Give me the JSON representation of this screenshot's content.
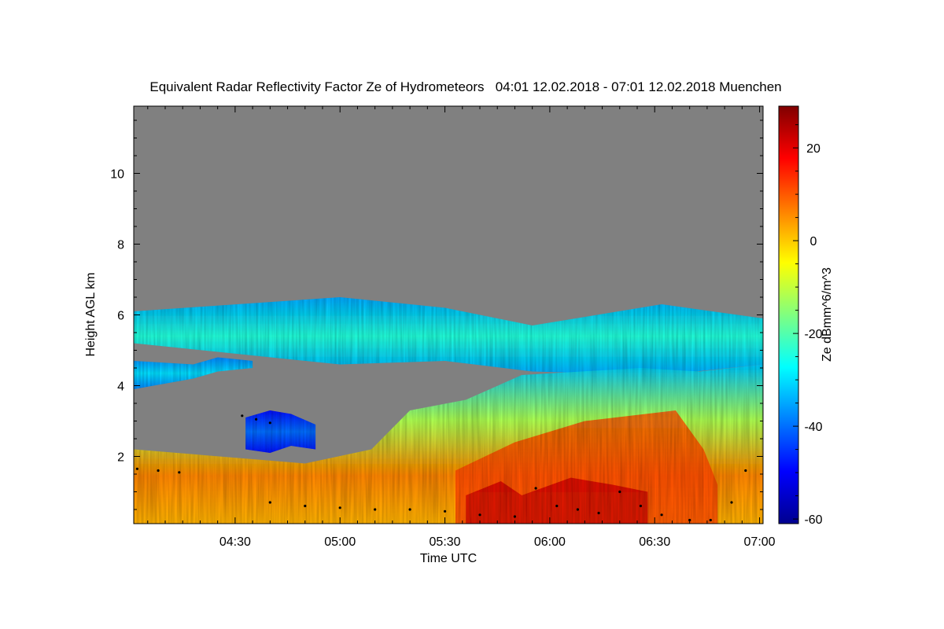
{
  "chart_data": {
    "type": "heatmap",
    "title": "Equivalent Radar Reflectivity Factor Ze of Hydrometeors   04:01 12.02.2018 - 07:01 12.02.2018 Muenchen",
    "xlabel": "Time UTC",
    "ylabel": "Height AGL km",
    "colorbar_label": "Ze dBmm^6/m^3",
    "x_range_minutes": [
      241,
      421
    ],
    "x_ticks": [
      {
        "minute": 270,
        "label": "04:30"
      },
      {
        "minute": 300,
        "label": "05:00"
      },
      {
        "minute": 330,
        "label": "05:30"
      },
      {
        "minute": 360,
        "label": "06:00"
      },
      {
        "minute": 390,
        "label": "06:30"
      },
      {
        "minute": 420,
        "label": "07:00"
      }
    ],
    "y_range_km": [
      0.1,
      11.9
    ],
    "y_ticks": [
      {
        "value": 2,
        "label": "2"
      },
      {
        "value": 4,
        "label": "4"
      },
      {
        "value": 6,
        "label": "6"
      },
      {
        "value": 8,
        "label": "8"
      },
      {
        "value": 10,
        "label": "10"
      }
    ],
    "colorbar_range_dbz": [
      -61,
      29
    ],
    "colorbar_ticks": [
      {
        "value": 20,
        "label": "20"
      },
      {
        "value": 0,
        "label": "0"
      },
      {
        "value": -20,
        "label": "-20"
      },
      {
        "value": -40,
        "label": "-40"
      },
      {
        "value": -60,
        "label": "-60"
      }
    ],
    "colormap": [
      "#00008f",
      "#0000ff",
      "#0080ff",
      "#00ffff",
      "#80ff80",
      "#ffff00",
      "#ff8000",
      "#ff0000",
      "#800000"
    ],
    "no_signal_color": "#808080",
    "layers": [
      {
        "name": "upper cloud band",
        "t": [
          241,
          300,
          330,
          355,
          392,
          421
        ],
        "base": [
          5.2,
          4.6,
          4.7,
          4.4,
          4.3,
          4.6
        ],
        "top": [
          6.1,
          6.5,
          6.2,
          5.7,
          6.3,
          5.9
        ],
        "dbz_core": -24,
        "dbz_edge": -35
      },
      {
        "name": "mid cloud band",
        "t": [
          241,
          258,
          265,
          275
        ],
        "base": [
          3.9,
          4.2,
          4.4,
          4.5
        ],
        "top": [
          4.7,
          4.6,
          4.8,
          4.7
        ],
        "dbz_core": -30,
        "dbz_edge": -38
      },
      {
        "name": "isolated mid echo",
        "t": [
          273,
          280,
          286,
          293
        ],
        "base": [
          2.2,
          2.1,
          2.3,
          2.2
        ],
        "top": [
          3.1,
          3.3,
          3.2,
          2.9
        ],
        "dbz_core": -40,
        "dbz_edge": -48
      },
      {
        "name": "precipitation",
        "t": [
          241,
          290,
          309,
          320,
          336,
          352,
          386,
          403,
          421
        ],
        "base": [
          0.1,
          0.1,
          0.1,
          0.1,
          0.1,
          0.1,
          0.1,
          0.1,
          0.1
        ],
        "top": [
          2.2,
          1.8,
          2.2,
          3.3,
          3.6,
          4.3,
          4.5,
          4.4,
          4.6
        ],
        "dbz_core": 6,
        "dbz_edge": -32
      }
    ],
    "melting_layer_points": [
      {
        "t": 242,
        "h": 1.65
      },
      {
        "t": 248,
        "h": 1.6
      },
      {
        "t": 254,
        "h": 1.55
      },
      {
        "t": 272,
        "h": 3.15
      },
      {
        "t": 276,
        "h": 3.05
      },
      {
        "t": 280,
        "h": 2.95
      },
      {
        "t": 280,
        "h": 0.7
      },
      {
        "t": 290,
        "h": 0.6
      },
      {
        "t": 300,
        "h": 0.55
      },
      {
        "t": 310,
        "h": 0.5
      },
      {
        "t": 320,
        "h": 0.5
      },
      {
        "t": 330,
        "h": 0.45
      },
      {
        "t": 340,
        "h": 0.35
      },
      {
        "t": 350,
        "h": 0.3
      },
      {
        "t": 356,
        "h": 1.1
      },
      {
        "t": 362,
        "h": 0.6
      },
      {
        "t": 368,
        "h": 0.5
      },
      {
        "t": 374,
        "h": 0.4
      },
      {
        "t": 380,
        "h": 1.0
      },
      {
        "t": 386,
        "h": 0.6
      },
      {
        "t": 392,
        "h": 0.35
      },
      {
        "t": 400,
        "h": 0.2
      },
      {
        "t": 406,
        "h": 0.2
      },
      {
        "t": 412,
        "h": 0.7
      },
      {
        "t": 416,
        "h": 1.6
      }
    ]
  }
}
